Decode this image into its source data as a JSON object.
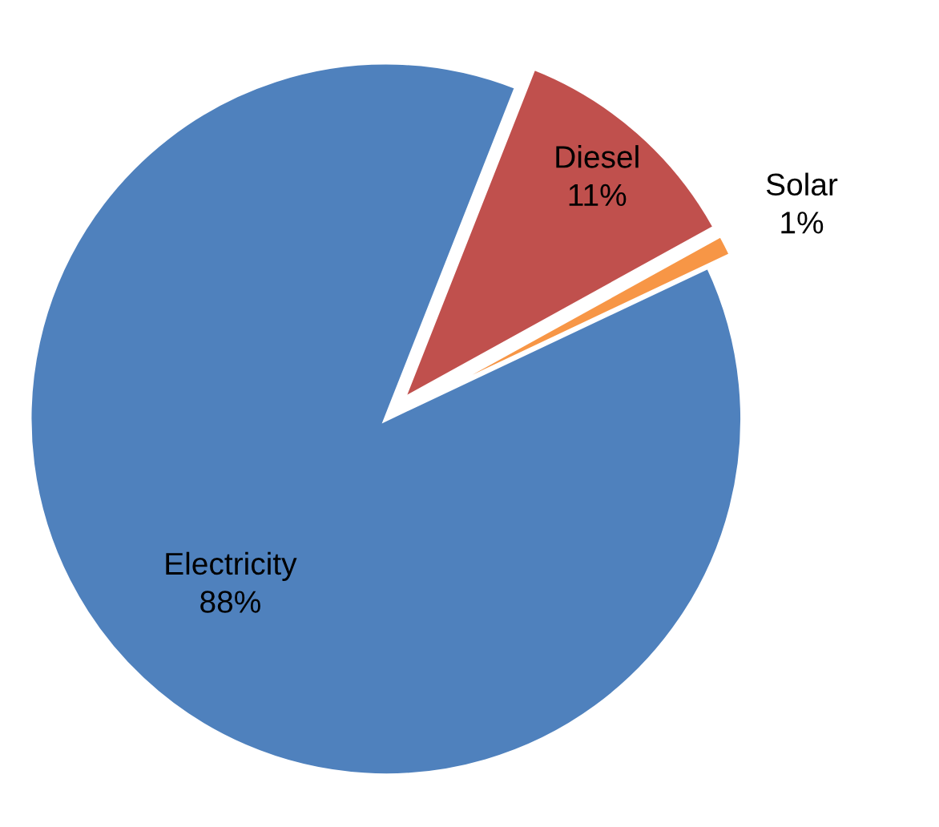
{
  "chart_data": {
    "type": "pie",
    "categories": [
      "Electricity",
      "Diesel",
      "Solar"
    ],
    "values": [
      88,
      11,
      1
    ],
    "colors": [
      "#4f81bd",
      "#c0504d",
      "#f79646"
    ],
    "value_labels": [
      "88%",
      "11%",
      "1%"
    ],
    "legend": false
  }
}
